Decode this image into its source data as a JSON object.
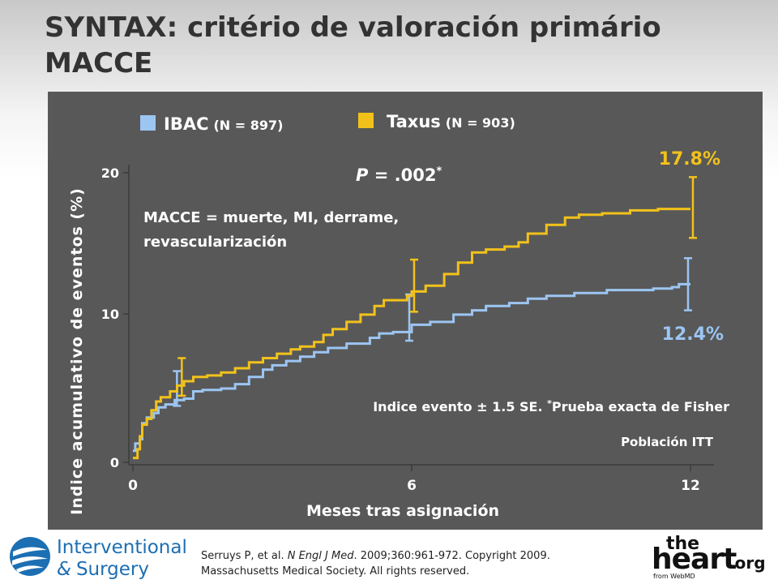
{
  "slide": {
    "title_line1": "SYNTAX: critério de valoración primário",
    "title_line2": "MACCE"
  },
  "colors": {
    "background_panel": "#585858",
    "ibac_blue": "#9cc5f2",
    "taxus_gold": "#f2c21b",
    "axis_text": "#ffffff",
    "ibac_value_text": "#9cc5f2",
    "taxus_value_text": "#f2c21b"
  },
  "chart_data": {
    "type": "line",
    "title": "",
    "xlabel": "Meses tras asignación",
    "ylabel": "Indice acumulativo de eventos (%)",
    "xlim": [
      0,
      12
    ],
    "ylim": [
      0,
      20
    ],
    "x_ticks": [
      "0",
      "6",
      "12"
    ],
    "y_ticks": [
      "0",
      "10",
      "20"
    ],
    "grid": false,
    "legend_position": "top",
    "series": [
      {
        "name": "IBAC",
        "legend_n": "(N = 897)",
        "color": "#9cc5f2",
        "points": [
          [
            0,
            0.8
          ],
          [
            0.05,
            1.3
          ],
          [
            0.15,
            1.6
          ],
          [
            0.2,
            2.7
          ],
          [
            0.3,
            3.1
          ],
          [
            0.45,
            3.4
          ],
          [
            0.55,
            3.8
          ],
          [
            0.7,
            4.0
          ],
          [
            0.9,
            4.3
          ],
          [
            1.1,
            4.4
          ],
          [
            1.3,
            4.9
          ],
          [
            1.5,
            5.0
          ],
          [
            1.9,
            5.1
          ],
          [
            2.2,
            5.4
          ],
          [
            2.5,
            5.9
          ],
          [
            2.8,
            6.4
          ],
          [
            3.0,
            6.7
          ],
          [
            3.3,
            7.0
          ],
          [
            3.6,
            7.3
          ],
          [
            3.9,
            7.6
          ],
          [
            4.2,
            7.9
          ],
          [
            4.6,
            8.2
          ],
          [
            5.1,
            8.6
          ],
          [
            5.3,
            8.9
          ],
          [
            5.6,
            9.0
          ],
          [
            6.0,
            9.5
          ],
          [
            6.4,
            9.7
          ],
          [
            6.9,
            10.2
          ],
          [
            7.3,
            10.5
          ],
          [
            7.6,
            10.8
          ],
          [
            8.1,
            11.0
          ],
          [
            8.5,
            11.3
          ],
          [
            8.9,
            11.5
          ],
          [
            9.5,
            11.7
          ],
          [
            10.2,
            11.9
          ],
          [
            11.2,
            12.0
          ],
          [
            11.6,
            12.1
          ],
          [
            11.75,
            12.3
          ],
          [
            12.0,
            12.3
          ]
        ],
        "end_value": 12.4,
        "end_label": "12.4%",
        "error_bars": [
          [
            1.0,
            5.1,
            1.2
          ],
          [
            6.0,
            10.0,
            1.6
          ],
          [
            12.0,
            12.3,
            1.8
          ]
        ]
      },
      {
        "name": "Taxus",
        "legend_n": "(N = 903)",
        "color": "#f2c21b",
        "points": [
          [
            0,
            0.3
          ],
          [
            0.1,
            0.9
          ],
          [
            0.15,
            1.8
          ],
          [
            0.2,
            2.6
          ],
          [
            0.3,
            3.0
          ],
          [
            0.4,
            3.6
          ],
          [
            0.5,
            4.2
          ],
          [
            0.6,
            4.5
          ],
          [
            0.8,
            4.9
          ],
          [
            0.95,
            5.3
          ],
          [
            1.1,
            5.6
          ],
          [
            1.3,
            5.9
          ],
          [
            1.6,
            6.0
          ],
          [
            1.9,
            6.2
          ],
          [
            2.2,
            6.5
          ],
          [
            2.5,
            6.9
          ],
          [
            2.8,
            7.2
          ],
          [
            3.1,
            7.5
          ],
          [
            3.4,
            7.8
          ],
          [
            3.6,
            8.0
          ],
          [
            3.9,
            8.3
          ],
          [
            4.1,
            8.8
          ],
          [
            4.3,
            9.2
          ],
          [
            4.6,
            9.7
          ],
          [
            4.9,
            10.2
          ],
          [
            5.2,
            10.8
          ],
          [
            5.4,
            11.2
          ],
          [
            5.9,
            11.5
          ],
          [
            6.0,
            11.8
          ],
          [
            6.3,
            12.2
          ],
          [
            6.7,
            13.0
          ],
          [
            7.0,
            13.8
          ],
          [
            7.3,
            14.5
          ],
          [
            7.6,
            14.7
          ],
          [
            8.0,
            14.9
          ],
          [
            8.3,
            15.2
          ],
          [
            8.5,
            15.8
          ],
          [
            8.9,
            16.4
          ],
          [
            9.3,
            16.9
          ],
          [
            9.6,
            17.1
          ],
          [
            10.1,
            17.2
          ],
          [
            10.7,
            17.4
          ],
          [
            11.3,
            17.5
          ],
          [
            12.0,
            17.5
          ]
        ],
        "end_value": 17.8,
        "end_label": "17.8%",
        "error_bars": [
          [
            1.0,
            5.9,
            1.3
          ],
          [
            6.0,
            12.2,
            1.8
          ],
          [
            12.0,
            17.6,
            2.1
          ]
        ]
      }
    ],
    "annotations": {
      "p_value_italic": "P",
      "p_value_rest": " = .002",
      "p_value_star": "*",
      "definition_line1": "MACCE = muerte, MI, derrame,",
      "definition_line2": "revascularización",
      "footnote_a": "Indice evento ± 1.5 SE. ",
      "footnote_star": "*",
      "footnote_b": "Prueba exacta de Fisher",
      "population": "Población ITT"
    }
  },
  "footer": {
    "logo_line1": "Interventional",
    "logo_amp": "&",
    "logo_line2": "Surgery",
    "citation_part1": "Serruys P, et al. ",
    "citation_journal": "N Engl J Med",
    "citation_part2": ". 2009;360:961-972.  Copyright 2009.",
    "citation_line2": "Massachusetts Medical Society. All rights reserved.",
    "heart_the": "the",
    "heart_main": "heart",
    "heart_org": ".org",
    "heart_from": "from WebMD"
  }
}
